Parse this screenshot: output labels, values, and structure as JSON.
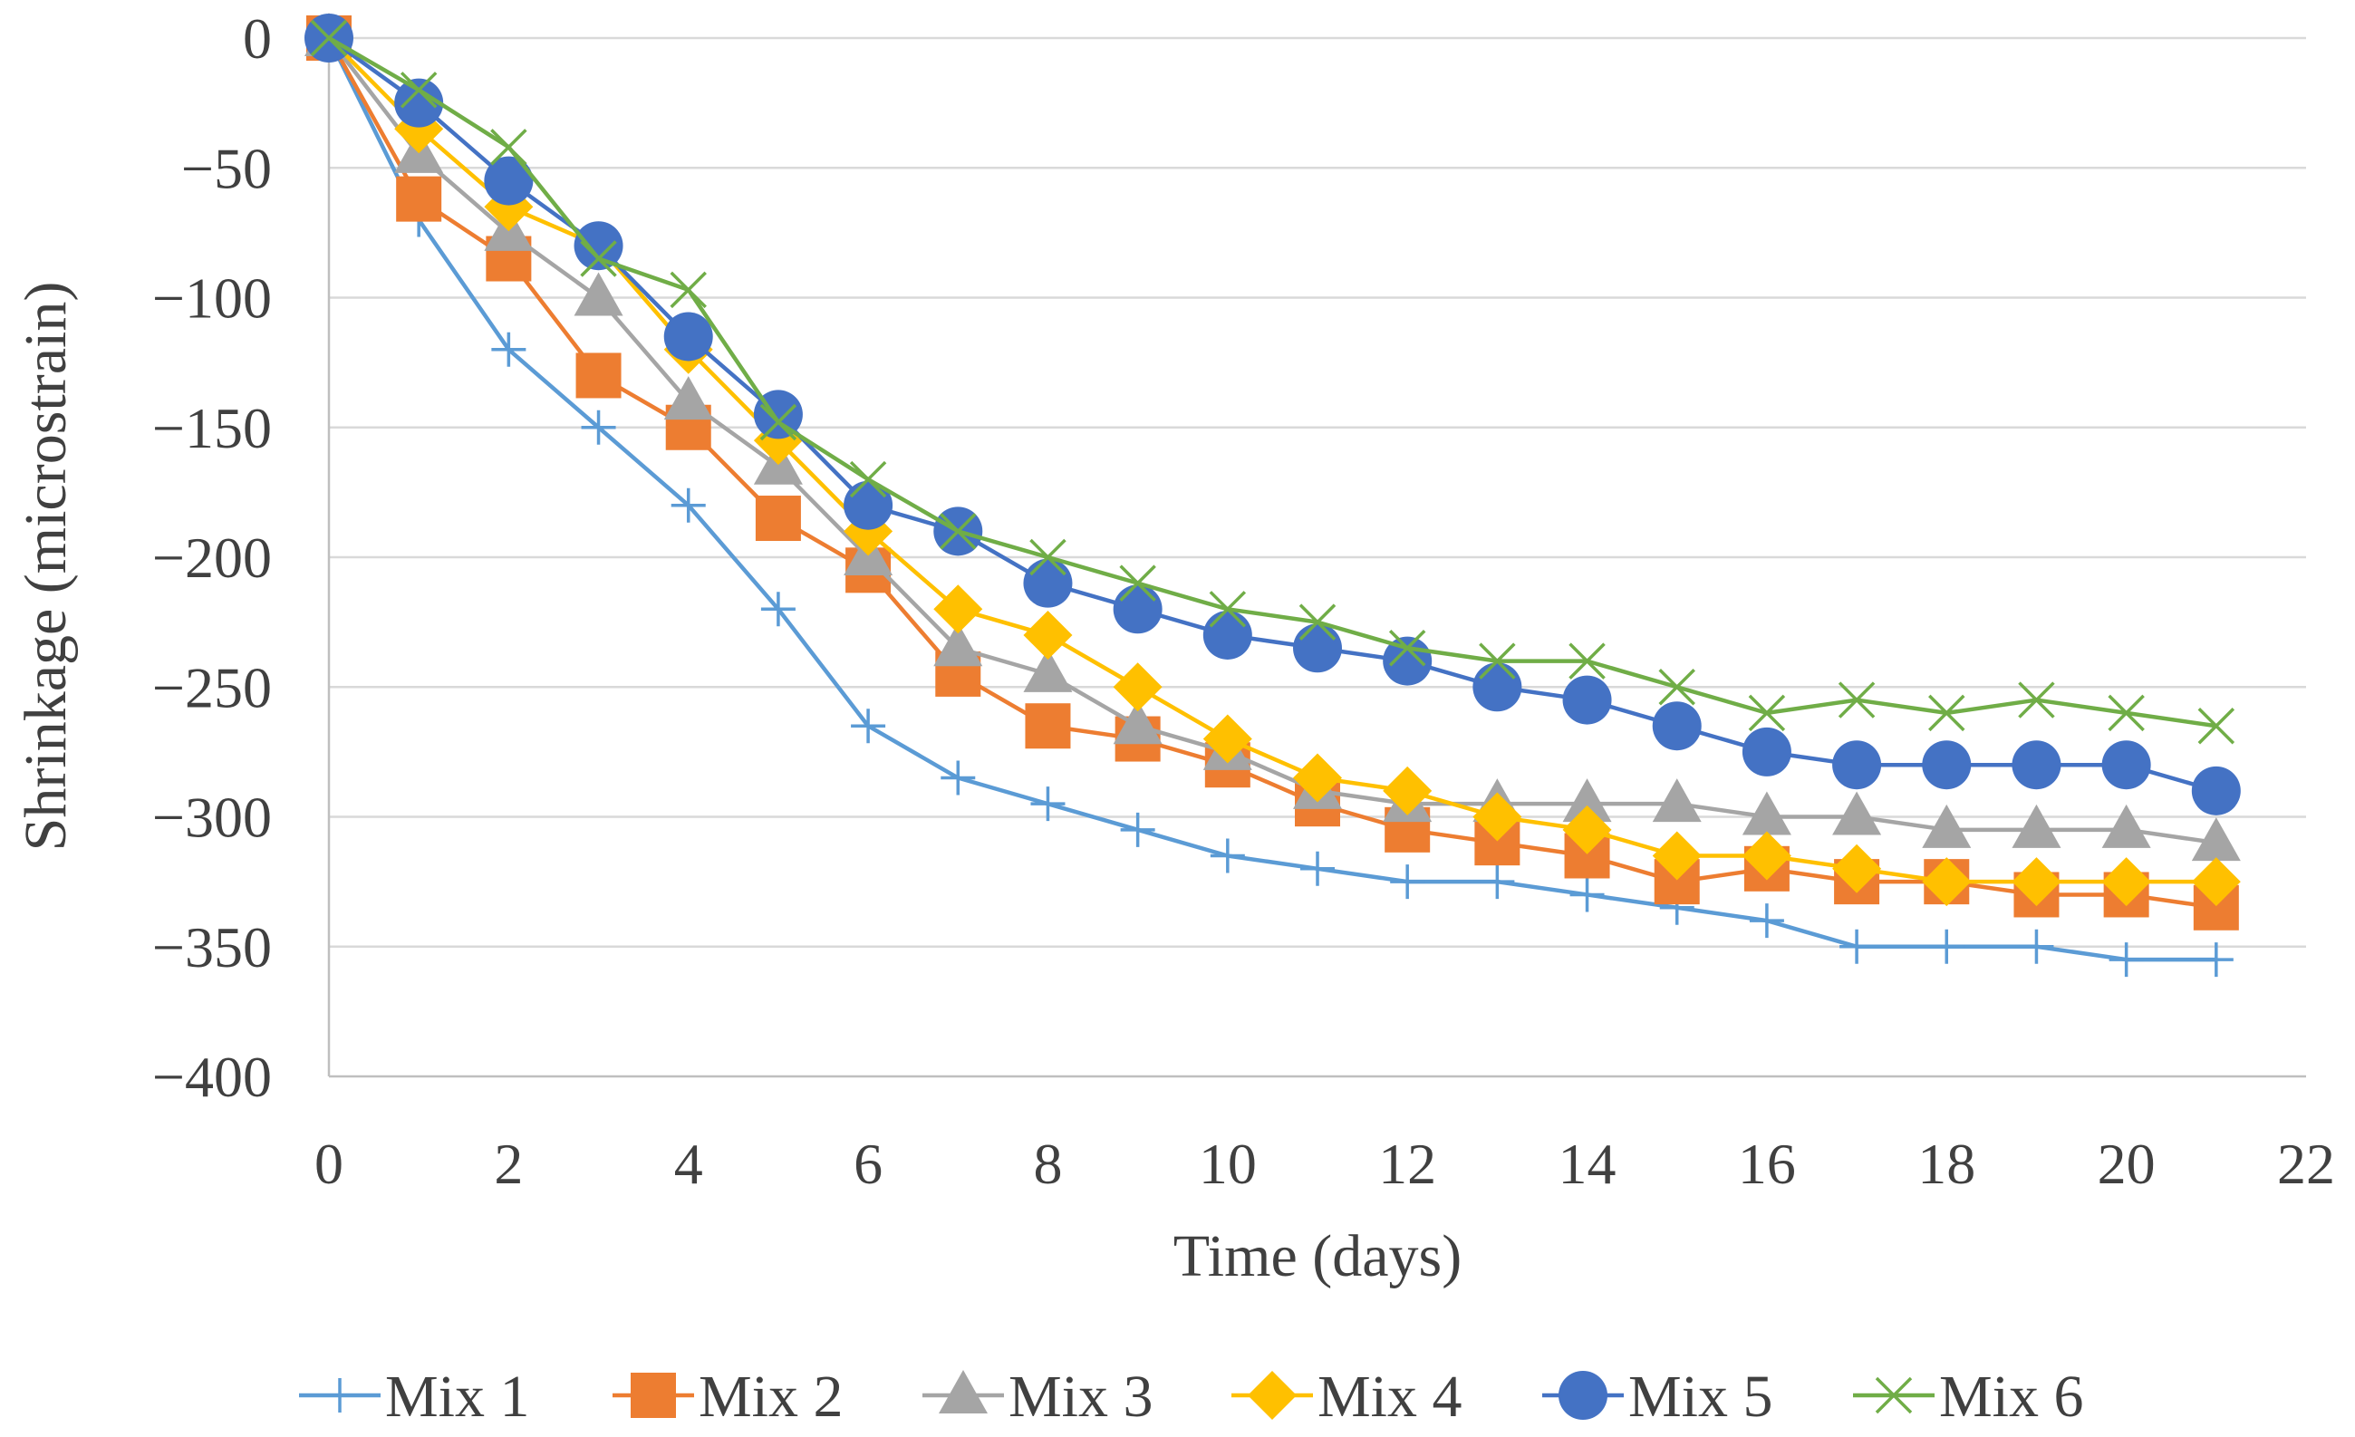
{
  "chart_data": {
    "type": "line",
    "title": "",
    "xlabel": "Time (days)",
    "ylabel": "Shrinkage (microstrain)",
    "xlim": [
      0,
      22
    ],
    "ylim": [
      -400,
      0
    ],
    "xticks": [
      0,
      2,
      4,
      6,
      8,
      10,
      12,
      14,
      16,
      18,
      20,
      22
    ],
    "yticks": [
      0,
      -50,
      -100,
      -150,
      -200,
      -250,
      -300,
      -350,
      -400
    ],
    "ytick_labels": [
      "0",
      "−50",
      "−100",
      "−150",
      "−200",
      "−250",
      "−300",
      "−350",
      "−400"
    ],
    "grid": "horizontal",
    "legend_position": "bottom",
    "x": [
      0,
      1,
      2,
      3,
      4,
      5,
      6,
      7,
      8,
      9,
      10,
      11,
      12,
      13,
      14,
      15,
      16,
      17,
      18,
      19,
      20,
      21
    ],
    "series": [
      {
        "name": "Mix 1",
        "color": "#5b9bd5",
        "marker": "plus",
        "values": [
          0,
          -70,
          -120,
          -150,
          -180,
          -220,
          -265,
          -285,
          -295,
          -305,
          -315,
          -320,
          -325,
          -325,
          -330,
          -335,
          -340,
          -350,
          -350,
          -350,
          -355,
          -355
        ]
      },
      {
        "name": "Mix 2",
        "color": "#ed7d31",
        "marker": "square",
        "values": [
          0,
          -62,
          -85,
          -130,
          -150,
          -185,
          -205,
          -245,
          -265,
          -270,
          -280,
          -295,
          -305,
          -310,
          -315,
          -325,
          -320,
          -325,
          -325,
          -330,
          -330,
          -335
        ]
      },
      {
        "name": "Mix 3",
        "color": "#a5a5a5",
        "marker": "triangle",
        "values": [
          0,
          -45,
          -75,
          -100,
          -140,
          -165,
          -200,
          -235,
          -245,
          -265,
          -275,
          -290,
          -295,
          -295,
          -295,
          -295,
          -300,
          -300,
          -305,
          -305,
          -305,
          -310
        ]
      },
      {
        "name": "Mix 4",
        "color": "#ffc000",
        "marker": "diamond",
        "values": [
          0,
          -35,
          -65,
          -80,
          -120,
          -155,
          -190,
          -220,
          -230,
          -250,
          -270,
          -285,
          -290,
          -300,
          -305,
          -315,
          -315,
          -320,
          -325,
          -325,
          -325,
          -325
        ]
      },
      {
        "name": "Mix 5",
        "color": "#4472c4",
        "marker": "circle",
        "values": [
          0,
          -25,
          -55,
          -80,
          -115,
          -145,
          -180,
          -190,
          -210,
          -220,
          -230,
          -235,
          -240,
          -250,
          -255,
          -265,
          -275,
          -280,
          -280,
          -280,
          -280,
          -290
        ]
      },
      {
        "name": "Mix 6",
        "color": "#70ad47",
        "marker": "x",
        "values": [
          0,
          -20,
          -42,
          -85,
          -97,
          -148,
          -170,
          -190,
          -200,
          -210,
          -220,
          -225,
          -235,
          -240,
          -240,
          -250,
          -260,
          -255,
          -260,
          -255,
          -260,
          -265
        ]
      }
    ]
  }
}
